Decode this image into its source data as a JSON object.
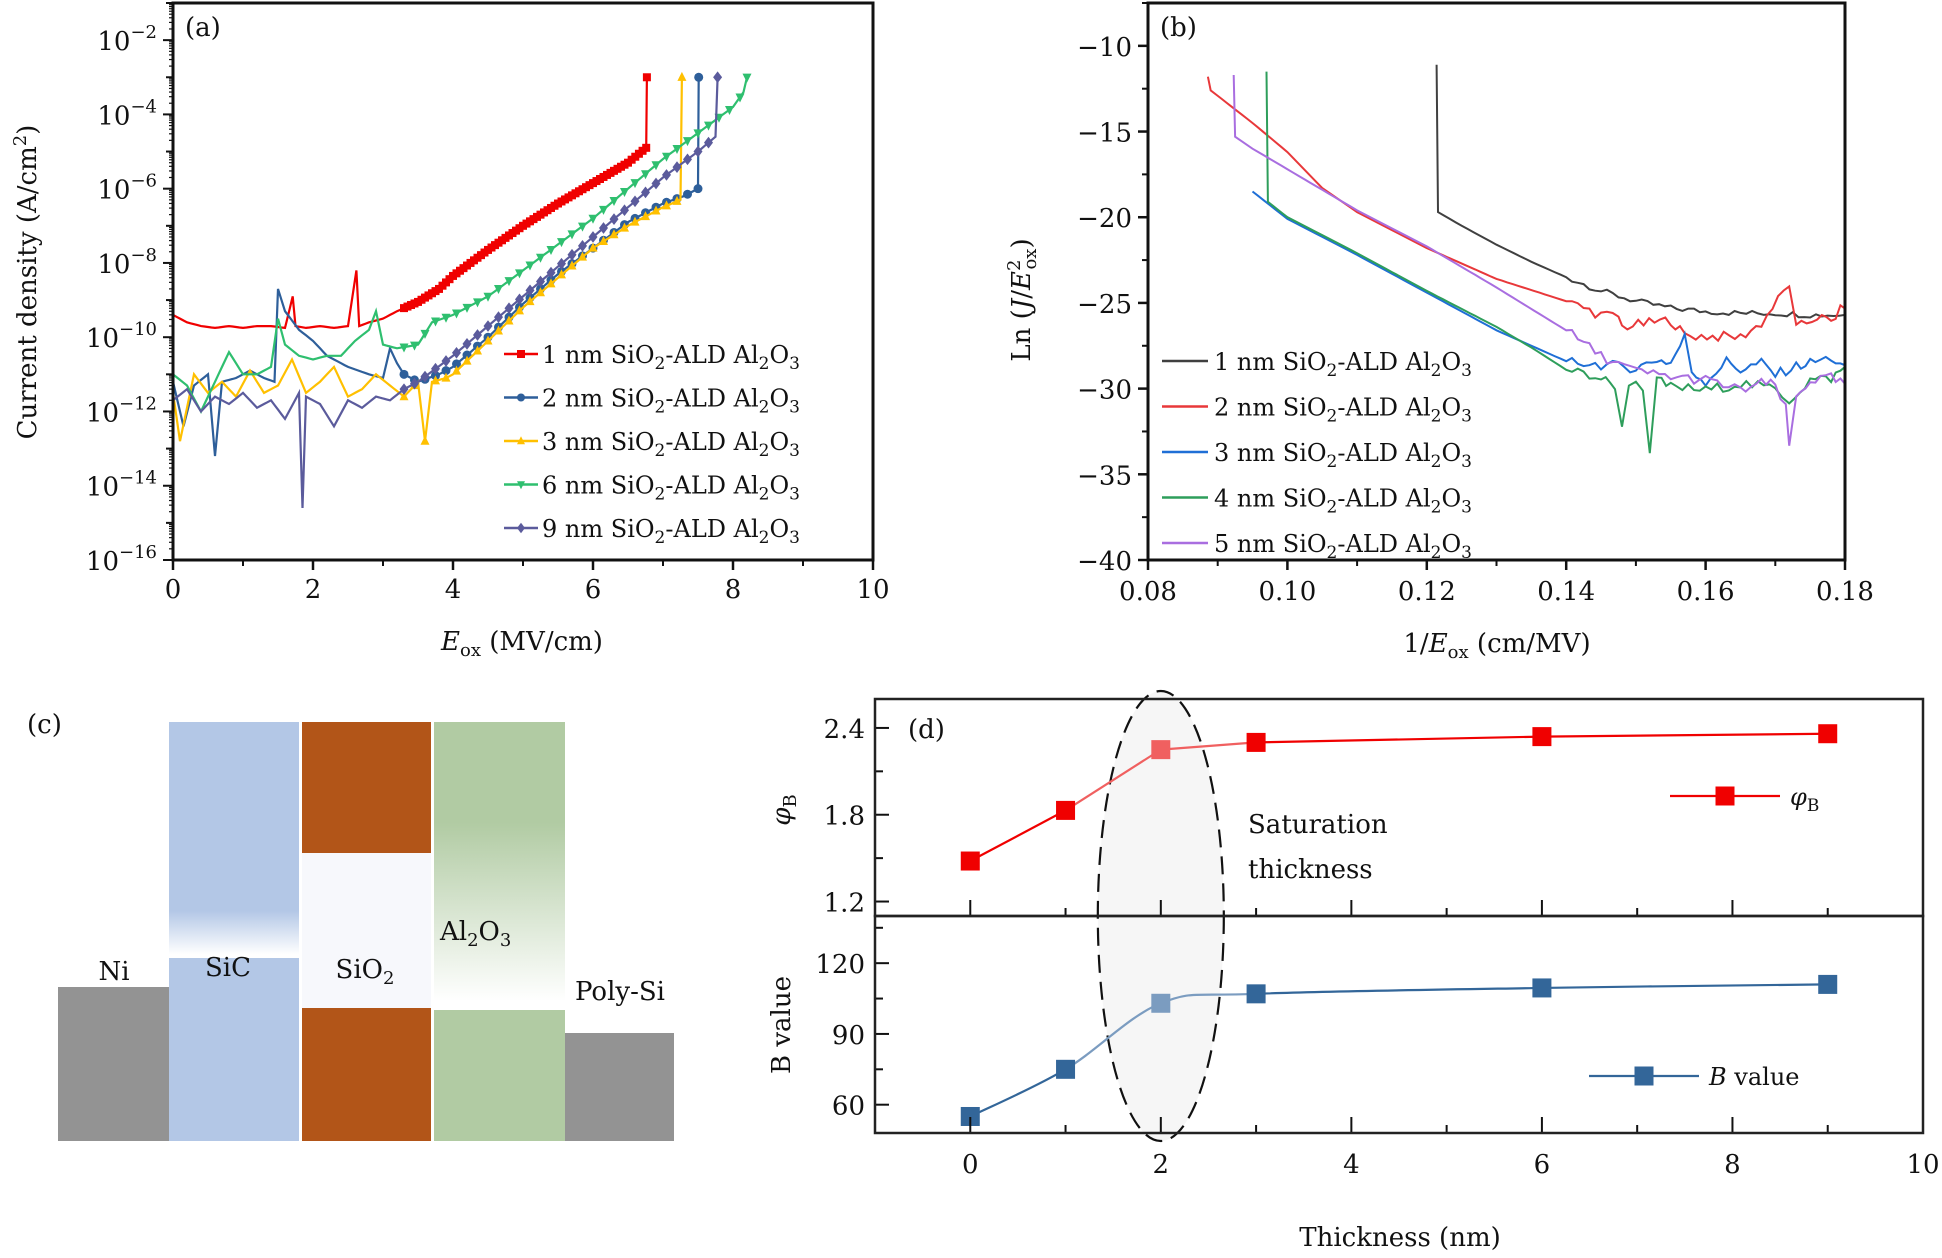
{
  "chart_data": [
    {
      "id": "a",
      "type": "line",
      "panel_label": "(a)",
      "xlabel": "E_ox (MV/cm)",
      "xlabel_main": "E",
      "xlabel_sub": "ox",
      "xlabel_unit": " (MV/cm)",
      "ylabel": "Current density (A/cm²)",
      "yscale": "log",
      "xlim": [
        0,
        10
      ],
      "ylim_log10": [
        -16,
        -1
      ],
      "xticks": [
        0,
        2,
        4,
        6,
        8,
        10
      ],
      "yticks_log10": [
        -16,
        -14,
        -12,
        -10,
        -8,
        -6,
        -4,
        -2
      ],
      "legend_position": "bottom-right",
      "series": [
        {
          "name": "1 nm SiO2-ALD Al2O3",
          "thk": "1",
          "color": "#f00000",
          "marker": "square",
          "x": [
            0,
            0.2,
            0.4,
            0.6,
            0.8,
            1.0,
            1.2,
            1.4,
            1.6,
            1.71,
            1.75,
            1.9,
            2.1,
            2.3,
            2.5,
            2.62,
            2.66,
            2.8,
            3.0,
            3.2,
            3.5,
            3.8,
            4.0,
            4.5,
            5.0,
            5.5,
            6.0,
            6.5,
            6.76,
            6.77
          ],
          "y": [
            -9.4,
            -9.6,
            -9.7,
            -9.75,
            -9.7,
            -9.75,
            -9.7,
            -9.7,
            -9.75,
            -8.9,
            -9.7,
            -9.75,
            -9.7,
            -9.75,
            -9.7,
            -8.2,
            -9.7,
            -9.6,
            -9.5,
            -9.3,
            -9.05,
            -8.7,
            -8.35,
            -7.65,
            -7.0,
            -6.4,
            -5.85,
            -5.3,
            -4.9,
            -3.0
          ]
        },
        {
          "name": "2 nm SiO2-ALD Al2O3",
          "thk": "2",
          "color": "#2e5f9a",
          "marker": "circle",
          "x": [
            0,
            0.15,
            0.3,
            0.5,
            0.6,
            0.7,
            0.9,
            1.1,
            1.3,
            1.45,
            1.5,
            1.6,
            1.8,
            2.0,
            2.2,
            2.5,
            2.8,
            3.0,
            3.1,
            3.2,
            3.3,
            3.5,
            3.8,
            4.0,
            4.5,
            5.0,
            5.5,
            6.0,
            6.5,
            7.0,
            7.3,
            7.5,
            7.51
          ],
          "y": [
            -11.2,
            -12.4,
            -11.3,
            -11.0,
            -13.2,
            -11.2,
            -11.1,
            -10.9,
            -11.1,
            -11.2,
            -8.7,
            -9.3,
            -9.8,
            -10.1,
            -10.5,
            -10.8,
            -11.0,
            -11.1,
            -10.3,
            -10.7,
            -11.0,
            -11.2,
            -11.0,
            -10.8,
            -10.0,
            -9.1,
            -8.3,
            -7.6,
            -6.9,
            -6.4,
            -6.2,
            -6.0,
            -3.0
          ]
        },
        {
          "name": "3 nm SiO2-ALD Al2O3",
          "thk": "3",
          "color": "#ffc000",
          "marker": "triangle-up",
          "x": [
            0,
            0.1,
            0.3,
            0.5,
            0.7,
            0.9,
            1.1,
            1.3,
            1.5,
            1.7,
            1.9,
            2.1,
            2.3,
            2.5,
            2.7,
            2.9,
            3.1,
            3.3,
            3.5,
            3.6,
            3.7,
            3.9,
            4.0,
            4.5,
            5.0,
            5.5,
            6.0,
            6.5,
            7.0,
            7.25,
            7.27
          ],
          "y": [
            -11.5,
            -12.8,
            -11.0,
            -11.5,
            -11.2,
            -11.6,
            -10.9,
            -11.5,
            -11.3,
            -10.6,
            -11.5,
            -11.2,
            -10.8,
            -11.6,
            -11.4,
            -11.0,
            -11.3,
            -11.6,
            -11.2,
            -12.8,
            -11.2,
            -11.1,
            -11.0,
            -10.1,
            -9.2,
            -8.4,
            -7.6,
            -7.0,
            -6.5,
            -6.3,
            -3.0
          ]
        },
        {
          "name": "6 nm SiO2-ALD Al2O3",
          "thk": "6",
          "color": "#2fbf6f",
          "marker": "triangle-down",
          "x": [
            0,
            0.2,
            0.4,
            0.6,
            0.8,
            1.0,
            1.2,
            1.4,
            1.5,
            1.6,
            1.8,
            2.0,
            2.2,
            2.4,
            2.6,
            2.8,
            2.9,
            3.0,
            3.2,
            3.5,
            3.7,
            4.0,
            4.5,
            5.0,
            5.5,
            6.0,
            6.5,
            7.0,
            7.5,
            8.0,
            8.15,
            8.2
          ],
          "y": [
            -11.0,
            -11.3,
            -12.0,
            -11.2,
            -10.4,
            -11.0,
            -11.0,
            -10.8,
            -9.5,
            -10.2,
            -10.5,
            -10.6,
            -10.5,
            -10.5,
            -10.1,
            -9.8,
            -9.3,
            -10.2,
            -10.3,
            -10.2,
            -9.6,
            -9.4,
            -8.9,
            -8.2,
            -7.5,
            -6.8,
            -6.0,
            -5.2,
            -4.5,
            -3.8,
            -3.4,
            -3.0
          ]
        },
        {
          "name": "9 nm SiO2-ALD Al2O3",
          "thk": "9",
          "color": "#5b5b9c",
          "marker": "diamond",
          "x": [
            0,
            0.2,
            0.4,
            0.6,
            0.8,
            1.0,
            1.2,
            1.4,
            1.6,
            1.8,
            1.85,
            1.9,
            2.1,
            2.3,
            2.5,
            2.7,
            2.9,
            3.1,
            3.3,
            3.5,
            4.0,
            4.5,
            5.0,
            5.5,
            6.0,
            6.5,
            7.0,
            7.5,
            7.75,
            7.78
          ],
          "y": [
            -11.7,
            -11.4,
            -12.0,
            -11.6,
            -11.8,
            -11.5,
            -11.9,
            -11.7,
            -12.2,
            -11.5,
            -14.6,
            -11.6,
            -11.8,
            -12.4,
            -11.7,
            -11.9,
            -11.6,
            -11.7,
            -11.4,
            -11.2,
            -10.5,
            -9.7,
            -8.9,
            -8.1,
            -7.3,
            -6.5,
            -5.7,
            -5.0,
            -4.6,
            -3.0
          ]
        }
      ]
    },
    {
      "id": "b",
      "type": "line",
      "panel_label": "(b)",
      "xlabel": "1/E_ox (cm/MV)",
      "xlabel_pre": "1/",
      "xlabel_main": "E",
      "xlabel_sub": "ox",
      "xlabel_unit": " (cm/MV)",
      "ylabel": "Ln (J/E_ox²)",
      "xlim": [
        0.08,
        0.18
      ],
      "ylim": [
        -40,
        -7.5
      ],
      "xticks": [
        0.08,
        0.1,
        0.12,
        0.14,
        0.16,
        0.18
      ],
      "xtick_labels": [
        "0.08",
        "0.10",
        "0.12",
        "0.14",
        "0.16",
        "0.18"
      ],
      "yticks": [
        -40,
        -35,
        -30,
        -25,
        -20,
        -15,
        -10
      ],
      "ytick_labels": [
        "−40",
        "−35",
        "−30",
        "−25",
        "−20",
        "−15",
        "−10"
      ],
      "legend_position": "bottom-left",
      "series": [
        {
          "name": "1 nm SiO2-ALD Al2O3",
          "thk": "1",
          "color": "#404040",
          "x": [
            0.1214,
            0.1216,
            0.125,
            0.13,
            0.135,
            0.14,
            0.145,
            0.15,
            0.155,
            0.16,
            0.165,
            0.17,
            0.175,
            0.18
          ],
          "y": [
            -11.1,
            -19.7,
            -20.5,
            -21.6,
            -22.6,
            -23.5,
            -24.3,
            -24.9,
            -25.3,
            -25.5,
            -25.6,
            -25.6,
            -25.7,
            -25.7
          ]
        },
        {
          "name": "2 nm SiO2-ALD Al2O3",
          "thk": "2",
          "color": "#e8383a",
          "x": [
            0.0886,
            0.089,
            0.095,
            0.1,
            0.105,
            0.11,
            0.12,
            0.13,
            0.14,
            0.145,
            0.1475,
            0.148,
            0.155,
            0.157,
            0.165,
            0.168,
            0.172,
            0.173,
            0.176,
            0.178,
            0.18
          ],
          "y": [
            -11.8,
            -12.6,
            -14.5,
            -16.2,
            -18.3,
            -19.7,
            -21.8,
            -23.6,
            -24.9,
            -25.7,
            -25.8,
            -26.4,
            -26.0,
            -26.9,
            -27.0,
            -26.2,
            -23.9,
            -26.5,
            -25.8,
            -26.1,
            -25.1
          ]
        },
        {
          "name": "3 nm SiO2-ALD Al2O3",
          "thk": "3",
          "color": "#1f6fd6",
          "x": [
            0.095,
            0.1,
            0.11,
            0.12,
            0.13,
            0.135,
            0.14,
            0.145,
            0.15,
            0.153,
            0.155,
            0.157,
            0.158,
            0.16,
            0.163,
            0.165,
            0.168,
            0.17,
            0.173,
            0.175,
            0.178,
            0.18
          ],
          "y": [
            -18.5,
            -20.1,
            -22.2,
            -24.4,
            -26.6,
            -27.5,
            -28.4,
            -28.6,
            -28.8,
            -28.3,
            -28.5,
            -27.0,
            -29.0,
            -29.6,
            -28.4,
            -28.9,
            -28.5,
            -29.2,
            -28.7,
            -28.5,
            -28.2,
            -28.9
          ]
        },
        {
          "name": "4 nm SiO2-ALD Al2O3",
          "thk": "4",
          "color": "#2e9e5b",
          "x": [
            0.097,
            0.0972,
            0.1,
            0.11,
            0.12,
            0.13,
            0.135,
            0.14,
            0.145,
            0.147,
            0.148,
            0.149,
            0.15,
            0.151,
            0.152,
            0.153,
            0.155,
            0.16,
            0.165,
            0.17,
            0.172,
            0.175,
            0.178,
            0.18
          ],
          "y": [
            -11.5,
            -19.1,
            -20.0,
            -22.1,
            -24.3,
            -26.4,
            -27.6,
            -28.9,
            -29.4,
            -29.8,
            -32.4,
            -29.6,
            -29.6,
            -29.9,
            -34.0,
            -29.5,
            -29.9,
            -30.1,
            -29.7,
            -30.0,
            -30.7,
            -29.5,
            -29.4,
            -28.8
          ]
        },
        {
          "name": "5 nm SiO2-ALD Al2O3",
          "thk": "5",
          "color": "#a96ee0",
          "x": [
            0.0923,
            0.0925,
            0.095,
            0.1,
            0.11,
            0.12,
            0.13,
            0.14,
            0.145,
            0.15,
            0.155,
            0.16,
            0.165,
            0.168,
            0.17,
            0.1715,
            0.172,
            0.173,
            0.175,
            0.178,
            0.18
          ],
          "y": [
            -11.7,
            -15.3,
            -16.0,
            -17.2,
            -19.6,
            -21.7,
            -24.1,
            -26.6,
            -28.1,
            -29.0,
            -29.3,
            -29.5,
            -30.1,
            -29.7,
            -29.8,
            -31.2,
            -33.4,
            -30.5,
            -29.5,
            -29.4,
            -29.8
          ]
        }
      ]
    },
    {
      "id": "d",
      "type": "line",
      "panel_label": "(d)",
      "xlabel": "Thickness (nm)",
      "xlim": [
        -1,
        10
      ],
      "xticks": [
        0,
        2,
        4,
        6,
        8,
        10
      ],
      "annotation": [
        "Saturation",
        "thickness"
      ],
      "highlight_x": 2,
      "subplots": [
        {
          "ylabel": "φB",
          "ylabel_main": "φ",
          "ylabel_sub": "B",
          "ylim": [
            1.1,
            2.6
          ],
          "yticks": [
            1.2,
            1.8,
            2.4
          ],
          "ytick_labels": [
            "1.2",
            "1.8",
            "2.4"
          ],
          "legend_position": "upper-right",
          "series": {
            "name": "φB",
            "legend_main": "φ",
            "legend_sub": "B",
            "color": "#f00000",
            "highlight_color": "#f06060",
            "x": [
              0,
              1,
              2,
              3,
              6,
              9
            ],
            "y": [
              1.48,
              1.83,
              2.25,
              2.3,
              2.34,
              2.36
            ]
          }
        },
        {
          "ylabel": "B value",
          "ylim": [
            48,
            140
          ],
          "yticks": [
            60,
            90,
            120
          ],
          "ytick_labels": [
            "60",
            "90",
            "120"
          ],
          "legend_position": "lower-right",
          "series": {
            "name": "B value",
            "legend_main": "B",
            "legend_rest": " value",
            "color": "#336699",
            "highlight_color": "#7b9cc0",
            "x": [
              0,
              1,
              2,
              3,
              6,
              9
            ],
            "y": [
              55,
              75,
              103,
              107,
              109.5,
              111
            ]
          }
        }
      ]
    }
  ],
  "diagram_c": {
    "panel_label": "(c)",
    "layers": [
      {
        "name": "Ni",
        "color": "#939393"
      },
      {
        "name": "SiC",
        "color": "#b3c7e6"
      },
      {
        "name": "SiO2",
        "label_main": "SiO",
        "label_sub": "2",
        "color": "#b25518"
      },
      {
        "name": "Al2O3",
        "label_main": "Al",
        "label_sub1": "2",
        "label_mid": "O",
        "label_sub2": "3",
        "color": "#b1cba3"
      },
      {
        "name": "Poly-Si",
        "color": "#939393"
      }
    ]
  },
  "labels": {
    "a_ylabel": "Current density (A/cm",
    "a_ylabel_sup": "2",
    "b_ylabel_pre": "Ln (",
    "b_ylabel_J": "J",
    "b_ylabel_slash": "/",
    "b_ylabel_E": "E",
    "b_ylabel_sup": "2",
    "b_ylabel_sub": "ox",
    "b_ylabel_post": ")",
    "legend_pre": " nm SiO",
    "legend_sub": "2",
    "legend_mid": "-ALD Al",
    "legend_sub2": "2",
    "legend_o": "O",
    "legend_sub3": "3"
  }
}
